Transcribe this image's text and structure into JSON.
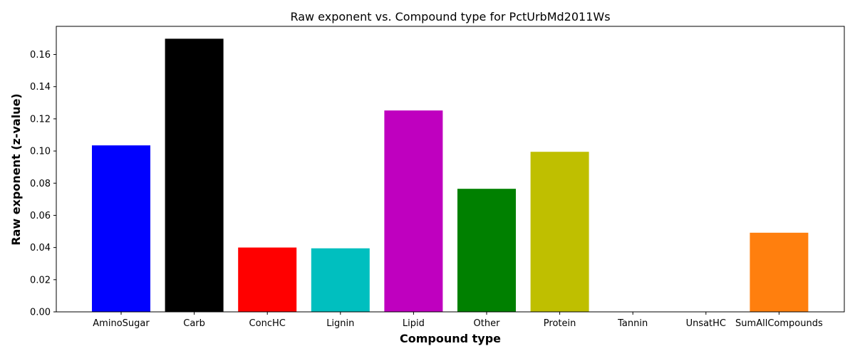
{
  "chart_data": {
    "type": "bar",
    "title": "Raw exponent vs. Compound type for PctUrbMd2011Ws",
    "xlabel": "Compound type",
    "ylabel": "Raw exponent (z-value)",
    "ylim": [
      0,
      0.1775
    ],
    "yticks": [
      0.0,
      0.02,
      0.04,
      0.06,
      0.08,
      0.1,
      0.12,
      0.14,
      0.16
    ],
    "ytick_labels": [
      "0.00",
      "0.02",
      "0.04",
      "0.06",
      "0.08",
      "0.10",
      "0.12",
      "0.14",
      "0.16"
    ],
    "grid": false,
    "categories": [
      "AminoSugar",
      "Carb",
      "ConcHC",
      "Lignin",
      "Lipid",
      "Other",
      "Protein",
      "Tannin",
      "UnsatHC",
      "SumAllCompounds"
    ],
    "values": [
      0.1035,
      0.1698,
      0.04,
      0.0395,
      0.1252,
      0.0765,
      0.0995,
      0,
      0,
      0.0492
    ],
    "colors": [
      "#0000ff",
      "#000000",
      "#ff0000",
      "#00bfbf",
      "#bf00bf",
      "#008000",
      "#bfbf00",
      "#1f77b4",
      "#1f77b4",
      "#ff7f0e"
    ]
  }
}
